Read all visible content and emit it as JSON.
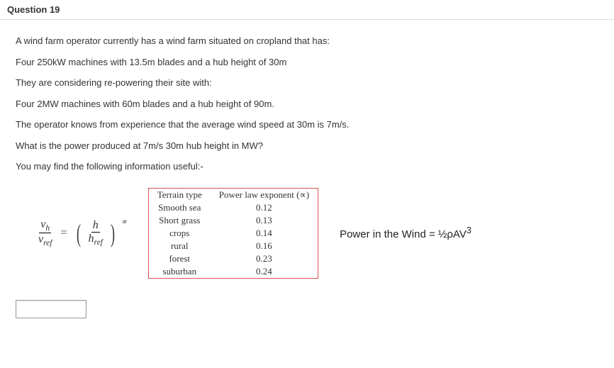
{
  "header": "Question 19",
  "paragraphs": [
    "A wind farm operator currently has a wind farm situated on cropland that has:",
    "Four 250kW machines with 13.5m blades and a hub height of 30m",
    "They are considering re-powering their site with:",
    "Four 2MW machines with 60m blades and a hub height of 90m.",
    "The operator knows from experience that the average wind speed at 30m is 7m/s.",
    "What is the power produced at 7m/s 30m hub height in MW?",
    "You may find the following information useful:-"
  ],
  "formula": {
    "lhs_num_sym": "v",
    "lhs_num_sub": "h",
    "lhs_den_sym": "v",
    "lhs_den_sub": "ref",
    "eq": "=",
    "rhs_num_sym": "h",
    "rhs_den_sym": "h",
    "rhs_den_sub": "ref",
    "exp": "∝"
  },
  "table": {
    "headers": [
      "Terrain type",
      "Power law exponent (∝)"
    ],
    "rows": [
      [
        "Smooth sea",
        "0.12"
      ],
      [
        "Short grass",
        "0.13"
      ],
      [
        "crops",
        "0.14"
      ],
      [
        "rural",
        "0.16"
      ],
      [
        "forest",
        "0.23"
      ],
      [
        "suburban",
        "0.24"
      ]
    ],
    "border_color": "#d9534f"
  },
  "power_equation": "Power in the Wind = ½ρAV³3"
}
